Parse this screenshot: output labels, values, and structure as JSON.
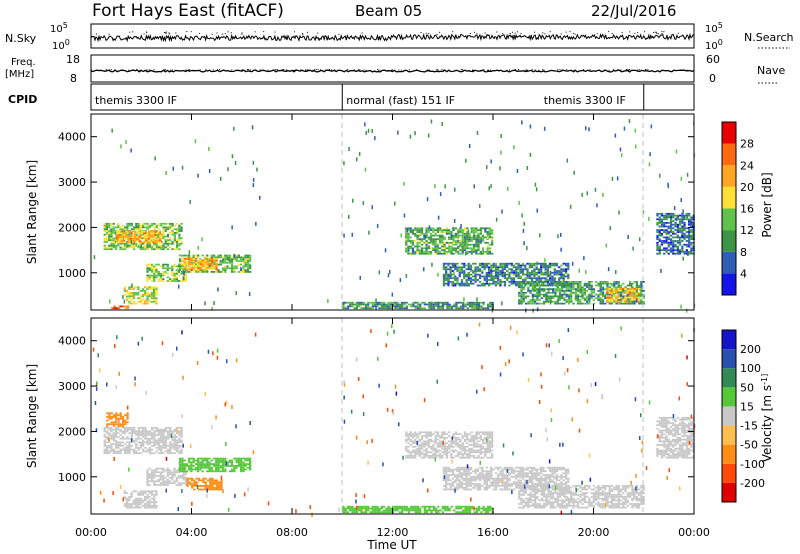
{
  "header": {
    "station": "Fort Hays East (fitACF)",
    "beam": "Beam 05",
    "date": "22/Jul/2016"
  },
  "top_panels": {
    "nsky_label": "N.Sky",
    "nsky_ticks": [
      "10^5",
      "10^0"
    ],
    "nsearch_label": "N.Search",
    "nsearch_ticks": [
      "10^5",
      "10^0"
    ],
    "freq_label_1": "Freq.",
    "freq_label_2": "[MHz]",
    "freq_ticks": [
      "18",
      "8"
    ],
    "nave_label": "Nave",
    "nave_ticks": [
      "60",
      "0"
    ],
    "cpid_label": "CPID",
    "cpid_segments": [
      {
        "text": "themis 3300 IF",
        "start_h": 0.0,
        "end_h": 10.0
      },
      {
        "text": "normal (fast) 151 IF",
        "start_h": 10.0,
        "end_h": 22.0
      },
      {
        "text": "themis 3300 IF",
        "start_h": 22.0,
        "end_h": 24.0
      }
    ]
  },
  "chart_data": [
    {
      "type": "heatmap",
      "title": "",
      "xlabel": "Time UT",
      "ylabel": "Slant Range [km]",
      "xlim": [
        0,
        24
      ],
      "ylim": [
        180,
        4500
      ],
      "x_tick_labels": [
        "00:00",
        "04:00",
        "08:00",
        "12:00",
        "16:00",
        "20:00",
        "00:00"
      ],
      "y_ticks": [
        1000,
        2000,
        3000,
        4000
      ],
      "colorbar": {
        "label": "Power [dB]",
        "tick_labels": [
          "28",
          "24",
          "20",
          "16",
          "12",
          "8",
          "4"
        ],
        "levels": [
          0,
          4,
          8,
          12,
          16,
          20,
          24,
          28,
          32
        ],
        "colors": [
          "#1414e6",
          "#2f5fb4",
          "#3c9444",
          "#5fc24a",
          "#ffe135",
          "#ffa520",
          "#ff6a10",
          "#e80000"
        ]
      },
      "regions": [
        {
          "t0": 0.5,
          "t1": 3.6,
          "r0": 1500,
          "r1": 2100,
          "value": 14
        },
        {
          "t0": 1.0,
          "t1": 2.8,
          "r0": 1650,
          "r1": 1900,
          "value": 21
        },
        {
          "t0": 1.3,
          "t1": 2.6,
          "r0": 300,
          "r1": 700,
          "value": 17
        },
        {
          "t0": 2.2,
          "t1": 3.8,
          "r0": 800,
          "r1": 1200,
          "value": 14
        },
        {
          "t0": 3.5,
          "t1": 6.3,
          "r0": 1000,
          "r1": 1400,
          "value": 13
        },
        {
          "t0": 3.6,
          "t1": 5.0,
          "r0": 1050,
          "r1": 1300,
          "value": 21
        },
        {
          "t0": 0.8,
          "t1": 1.5,
          "r0": 200,
          "r1": 280,
          "value": 26
        },
        {
          "t0": 10.0,
          "t1": 16.0,
          "r0": 200,
          "r1": 350,
          "value": 10
        },
        {
          "t0": 12.5,
          "t1": 16.0,
          "r0": 1400,
          "r1": 2000,
          "value": 12
        },
        {
          "t0": 14.0,
          "t1": 19.0,
          "r0": 700,
          "r1": 1200,
          "value": 8
        },
        {
          "t0": 17.0,
          "t1": 22.0,
          "r0": 300,
          "r1": 800,
          "value": 11
        },
        {
          "t0": 20.5,
          "t1": 21.8,
          "r0": 350,
          "r1": 650,
          "value": 21
        },
        {
          "t0": 22.5,
          "t1": 24.0,
          "r0": 1400,
          "r1": 2300,
          "value": 7
        }
      ]
    },
    {
      "type": "heatmap",
      "title": "",
      "xlabel": "Time UT",
      "ylabel": "Slant Range [km]",
      "xlim": [
        0,
        24
      ],
      "ylim": [
        180,
        4500
      ],
      "x_tick_labels": [
        "00:00",
        "04:00",
        "08:00",
        "12:00",
        "16:00",
        "20:00",
        "00:00"
      ],
      "y_ticks": [
        1000,
        2000,
        3000,
        4000
      ],
      "colorbar": {
        "label": "Velocity [m s^-1]",
        "tick_labels": [
          "200",
          "100",
          "50",
          "15",
          "-15",
          "-50",
          "-100",
          "-200"
        ],
        "levels": [
          -300,
          -200,
          -100,
          -50,
          -15,
          15,
          50,
          100,
          200,
          300
        ],
        "colors": [
          "#e00000",
          "#ff4a0a",
          "#ff8c14",
          "#ffbf50",
          "#c8c8c8",
          "#55c83a",
          "#2f8a55",
          "#2850b0",
          "#1414c8"
        ]
      },
      "regions": [
        {
          "t0": 0.5,
          "t1": 3.6,
          "r0": 1500,
          "r1": 2100,
          "value": 0
        },
        {
          "t0": 0.6,
          "t1": 1.5,
          "r0": 2100,
          "r1": 2400,
          "value": -60
        },
        {
          "t0": 1.3,
          "t1": 2.6,
          "r0": 300,
          "r1": 700,
          "value": 0
        },
        {
          "t0": 2.2,
          "t1": 3.8,
          "r0": 800,
          "r1": 1200,
          "value": 5
        },
        {
          "t0": 3.5,
          "t1": 6.3,
          "r0": 1100,
          "r1": 1400,
          "value": 30
        },
        {
          "t0": 3.8,
          "t1": 5.2,
          "r0": 700,
          "r1": 950,
          "value": -60
        },
        {
          "t0": 10.0,
          "t1": 16.0,
          "r0": 200,
          "r1": 350,
          "value": 20
        },
        {
          "t0": 12.5,
          "t1": 16.0,
          "r0": 1400,
          "r1": 2000,
          "value": 0
        },
        {
          "t0": 14.0,
          "t1": 19.0,
          "r0": 700,
          "r1": 1200,
          "value": -5
        },
        {
          "t0": 17.0,
          "t1": 22.0,
          "r0": 300,
          "r1": 800,
          "value": 0
        },
        {
          "t0": 22.5,
          "t1": 24.0,
          "r0": 1400,
          "r1": 2300,
          "value": 0
        }
      ]
    }
  ]
}
